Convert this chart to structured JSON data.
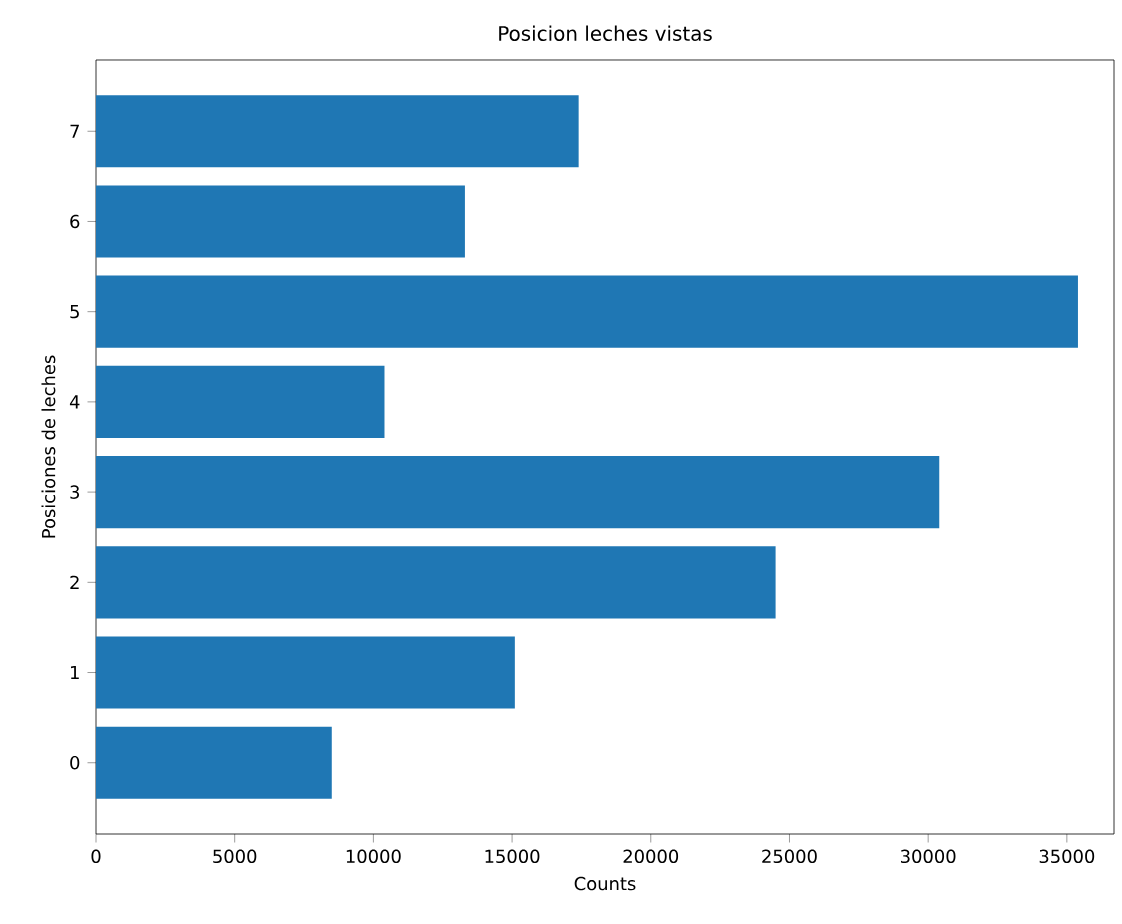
{
  "chart_data": {
    "type": "bar",
    "orientation": "horizontal",
    "title": "Posicion leches vistas",
    "xlabel": "Counts",
    "ylabel": "Posiciones de leches",
    "categories": [
      "7",
      "6",
      "5",
      "4",
      "3",
      "2",
      "1",
      "0"
    ],
    "values": [
      17400,
      13300,
      35400,
      10400,
      30400,
      24500,
      15100,
      8500
    ],
    "color": "#1f77b4",
    "xlim": [
      0,
      36700
    ],
    "xticks": [
      0,
      5000,
      10000,
      15000,
      20000,
      25000,
      30000,
      35000
    ]
  }
}
